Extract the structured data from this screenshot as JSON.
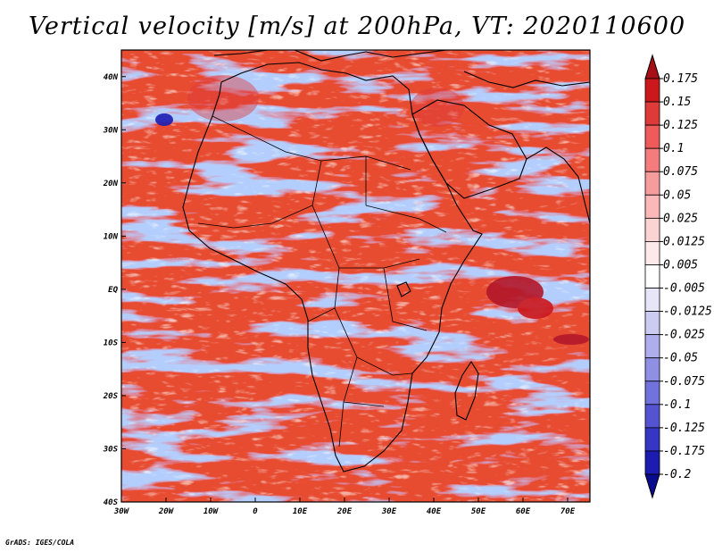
{
  "title": "Vertical velocity [m/s] at 200hPa, VT: 2020110600",
  "credit": "GrADS: IGES/COLA",
  "map": {
    "lon_range": [
      -30,
      75
    ],
    "lat_range": [
      -40,
      45
    ],
    "lon_ticks": [
      {
        "value": -30,
        "label": "30W"
      },
      {
        "value": -20,
        "label": "20W"
      },
      {
        "value": -10,
        "label": "10W"
      },
      {
        "value": 0,
        "label": "0"
      },
      {
        "value": 10,
        "label": "10E"
      },
      {
        "value": 20,
        "label": "20E"
      },
      {
        "value": 30,
        "label": "30E"
      },
      {
        "value": 40,
        "label": "40E"
      },
      {
        "value": 50,
        "label": "50E"
      },
      {
        "value": 60,
        "label": "60E"
      },
      {
        "value": 70,
        "label": "70E"
      }
    ],
    "lat_ticks": [
      {
        "value": 40,
        "label": "40N"
      },
      {
        "value": 30,
        "label": "30N"
      },
      {
        "value": 20,
        "label": "20N"
      },
      {
        "value": 10,
        "label": "10N"
      },
      {
        "value": 0,
        "label": "EQ"
      },
      {
        "value": -10,
        "label": "10S"
      },
      {
        "value": -20,
        "label": "20S"
      },
      {
        "value": -30,
        "label": "30S"
      },
      {
        "value": -40,
        "label": "40S"
      }
    ]
  },
  "colorbar": {
    "levels": [
      "0.175",
      "0.15",
      "0.125",
      "0.1",
      "0.075",
      "0.05",
      "0.025",
      "0.0125",
      "0.005",
      "-0.005",
      "-0.0125",
      "-0.025",
      "-0.05",
      "-0.075",
      "-0.1",
      "-0.125",
      "-0.175",
      "-0.2"
    ],
    "colors": [
      "#a50f15",
      "#cb181d",
      "#de3a3a",
      "#ef5b5b",
      "#f47c7c",
      "#f79c9c",
      "#fab8b8",
      "#fcd3d3",
      "#fde9e9",
      "#ffffff",
      "#e6e6f8",
      "#ccccf2",
      "#aeaeec",
      "#8f8fe4",
      "#7272dc",
      "#5454d2",
      "#3636c4",
      "#1c1cb0",
      "#0b0b8f"
    ]
  },
  "colors": {
    "positive_accent": "#a50f15",
    "negative_accent": "#0b0b8f",
    "coastline": "#000000"
  }
}
